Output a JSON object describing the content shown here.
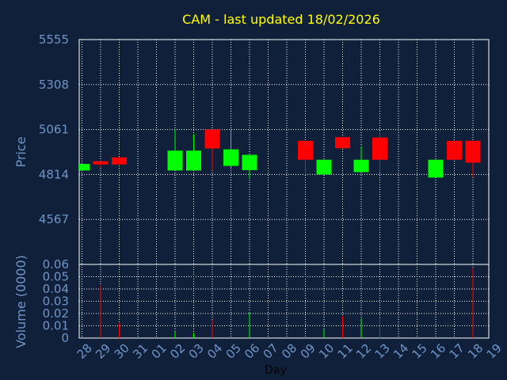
{
  "colors": {
    "background": "#10203a",
    "title": "#ffff00",
    "axis_text": "#6f95c8",
    "frame": "#ffffff",
    "grid": "#ffffff",
    "up": "#00ff00",
    "down": "#ff0000",
    "day_label": "#000000"
  },
  "chart_data": [
    {
      "type": "candlestick",
      "title": "CAM - last updated 18/02/2026",
      "ylabel": "Price",
      "ylim": [
        4320,
        5555
      ],
      "yticks": [
        5555,
        5308,
        5061,
        4814,
        4567
      ],
      "grid": true,
      "x_categories": [
        "28",
        "29",
        "30",
        "31",
        "01",
        "02",
        "03",
        "04",
        "05",
        "06",
        "07",
        "08",
        "09",
        "10",
        "11",
        "12",
        "13",
        "14",
        "15",
        "16",
        "17",
        "18",
        "19"
      ],
      "candles": [
        {
          "day": "28",
          "open": 4836,
          "close": 4872,
          "high": 4872,
          "low": 4836
        },
        {
          "day": "29",
          "open": 4887,
          "close": 4869,
          "high": 4887,
          "low": 4852
        },
        {
          "day": "30",
          "open": 4908,
          "close": 4869,
          "high": 4908,
          "low": 4869
        },
        {
          "day": "02",
          "open": 4836,
          "close": 4945,
          "high": 5061,
          "low": 4836
        },
        {
          "day": "03",
          "open": 4836,
          "close": 4945,
          "high": 5035,
          "low": 4836
        },
        {
          "day": "04",
          "open": 5061,
          "close": 4957,
          "high": 5061,
          "low": 4836
        },
        {
          "day": "05",
          "open": 4861,
          "close": 4952,
          "high": 5061,
          "low": 4850
        },
        {
          "day": "06",
          "open": 4838,
          "close": 4922,
          "high": 4922,
          "low": 4791
        },
        {
          "day": "09",
          "open": 4999,
          "close": 4895,
          "high": 4999,
          "low": 4814
        },
        {
          "day": "10",
          "open": 4814,
          "close": 4895,
          "high": 4895,
          "low": 4814
        },
        {
          "day": "11",
          "open": 5019,
          "close": 4958,
          "high": 5019,
          "low": 4958
        },
        {
          "day": "12",
          "open": 4827,
          "close": 4895,
          "high": 4970,
          "low": 4827
        },
        {
          "day": "13",
          "open": 5017,
          "close": 4895,
          "high": 5055,
          "low": 4827
        },
        {
          "day": "16",
          "open": 4797,
          "close": 4895,
          "high": 4895,
          "low": 4797
        },
        {
          "day": "17",
          "open": 4999,
          "close": 4895,
          "high": 4999,
          "low": 4895
        },
        {
          "day": "18",
          "open": 4999,
          "close": 4879,
          "high": 4999,
          "low": 4797
        }
      ]
    },
    {
      "type": "bar",
      "ylabel": "Volume (0000)",
      "xlabel": "Day",
      "ylim": [
        0,
        0.06
      ],
      "yticks": [
        "0.06",
        "0.05",
        "0.04",
        "0.03",
        "0.02",
        "0.01",
        "0"
      ],
      "grid": true,
      "bars": [
        {
          "day": "29",
          "value": 0.043,
          "dir": "down"
        },
        {
          "day": "30",
          "value": 0.012,
          "dir": "down"
        },
        {
          "day": "02",
          "value": 0.005,
          "dir": "up"
        },
        {
          "day": "03",
          "value": 0.004,
          "dir": "up"
        },
        {
          "day": "04",
          "value": 0.015,
          "dir": "down"
        },
        {
          "day": "06",
          "value": 0.021,
          "dir": "up"
        },
        {
          "day": "10",
          "value": 0.007,
          "dir": "up"
        },
        {
          "day": "11",
          "value": 0.018,
          "dir": "down"
        },
        {
          "day": "12",
          "value": 0.016,
          "dir": "up"
        },
        {
          "day": "13",
          "value": 0.017,
          "dir": "down"
        },
        {
          "day": "18",
          "value": 0.057,
          "dir": "down"
        }
      ]
    }
  ]
}
